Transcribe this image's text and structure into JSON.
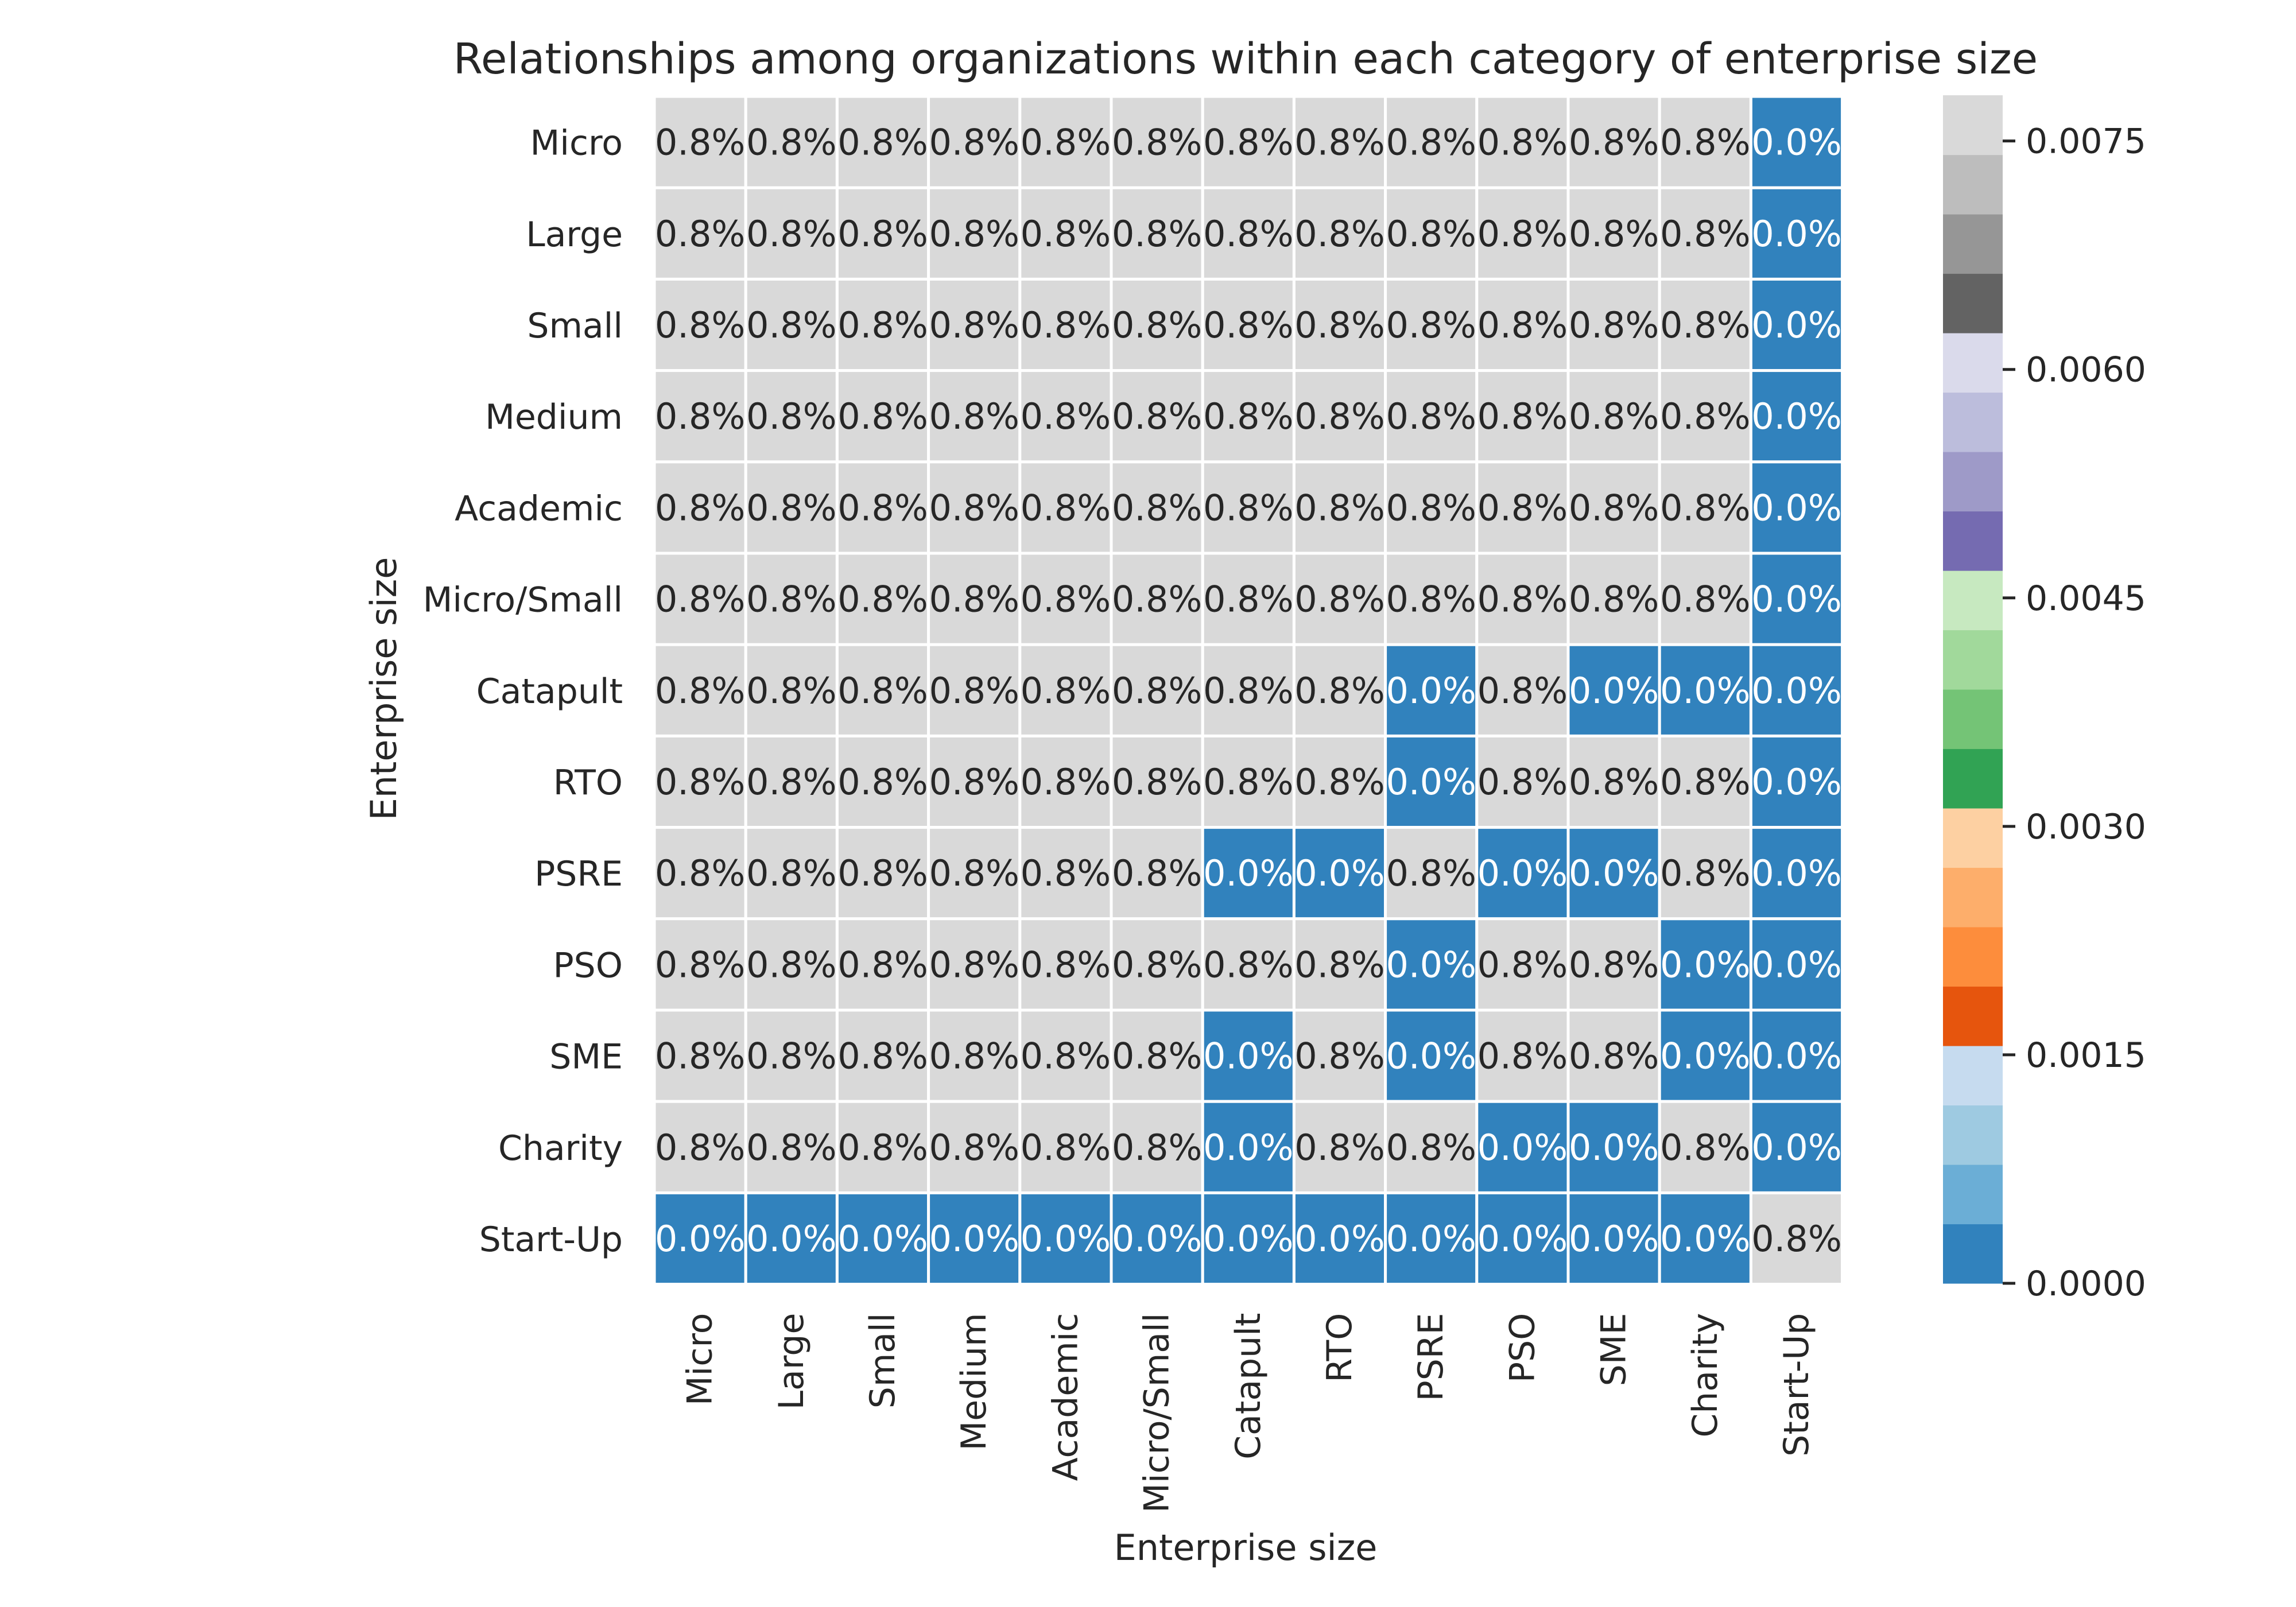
{
  "chart_data": {
    "type": "heatmap",
    "title": "Relationships among organizations within each category of enterprise size",
    "xlabel": "Enterprise size",
    "ylabel": "Enterprise size",
    "rows": [
      "Micro",
      "Large",
      "Small",
      "Medium",
      "Academic",
      "Micro/Small",
      "Catapult",
      "RTO",
      "PSRE",
      "PSO",
      "SME",
      "Charity",
      "Start-Up"
    ],
    "columns": [
      "Micro",
      "Large",
      "Small",
      "Medium",
      "Academic",
      "Micro/Small",
      "Catapult",
      "RTO",
      "PSRE",
      "PSO",
      "SME",
      "Charity",
      "Start-Up"
    ],
    "values": [
      [
        0.0077,
        0.0077,
        0.0077,
        0.0077,
        0.0077,
        0.0077,
        0.0077,
        0.0077,
        0.0077,
        0.0077,
        0.0077,
        0.0077,
        0
      ],
      [
        0.0077,
        0.0077,
        0.0077,
        0.0077,
        0.0077,
        0.0077,
        0.0077,
        0.0077,
        0.0077,
        0.0077,
        0.0077,
        0.0077,
        0
      ],
      [
        0.0077,
        0.0077,
        0.0077,
        0.0077,
        0.0077,
        0.0077,
        0.0077,
        0.0077,
        0.0077,
        0.0077,
        0.0077,
        0.0077,
        0
      ],
      [
        0.0077,
        0.0077,
        0.0077,
        0.0077,
        0.0077,
        0.0077,
        0.0077,
        0.0077,
        0.0077,
        0.0077,
        0.0077,
        0.0077,
        0
      ],
      [
        0.0077,
        0.0077,
        0.0077,
        0.0077,
        0.0077,
        0.0077,
        0.0077,
        0.0077,
        0.0077,
        0.0077,
        0.0077,
        0.0077,
        0
      ],
      [
        0.0077,
        0.0077,
        0.0077,
        0.0077,
        0.0077,
        0.0077,
        0.0077,
        0.0077,
        0.0077,
        0.0077,
        0.0077,
        0.0077,
        0
      ],
      [
        0.0077,
        0.0077,
        0.0077,
        0.0077,
        0.0077,
        0.0077,
        0.0077,
        0.0077,
        0,
        0.0077,
        0,
        0,
        0
      ],
      [
        0.0077,
        0.0077,
        0.0077,
        0.0077,
        0.0077,
        0.0077,
        0.0077,
        0.0077,
        0,
        0.0077,
        0.0077,
        0.0077,
        0
      ],
      [
        0.0077,
        0.0077,
        0.0077,
        0.0077,
        0.0077,
        0.0077,
        0,
        0,
        0.0077,
        0,
        0,
        0.0077,
        0
      ],
      [
        0.0077,
        0.0077,
        0.0077,
        0.0077,
        0.0077,
        0.0077,
        0.0077,
        0.0077,
        0,
        0.0077,
        0.0077,
        0,
        0
      ],
      [
        0.0077,
        0.0077,
        0.0077,
        0.0077,
        0.0077,
        0.0077,
        0,
        0.0077,
        0,
        0.0077,
        0.0077,
        0,
        0
      ],
      [
        0.0077,
        0.0077,
        0.0077,
        0.0077,
        0.0077,
        0.0077,
        0,
        0.0077,
        0.0077,
        0,
        0,
        0.0077,
        0
      ],
      [
        0,
        0,
        0,
        0,
        0,
        0,
        0,
        0,
        0,
        0,
        0,
        0,
        0.0077
      ]
    ],
    "cell_labels": [
      [
        "0.8%",
        "0.8%",
        "0.8%",
        "0.8%",
        "0.8%",
        "0.8%",
        "0.8%",
        "0.8%",
        "0.8%",
        "0.8%",
        "0.8%",
        "0.8%",
        "0.0%"
      ],
      [
        "0.8%",
        "0.8%",
        "0.8%",
        "0.8%",
        "0.8%",
        "0.8%",
        "0.8%",
        "0.8%",
        "0.8%",
        "0.8%",
        "0.8%",
        "0.8%",
        "0.0%"
      ],
      [
        "0.8%",
        "0.8%",
        "0.8%",
        "0.8%",
        "0.8%",
        "0.8%",
        "0.8%",
        "0.8%",
        "0.8%",
        "0.8%",
        "0.8%",
        "0.8%",
        "0.0%"
      ],
      [
        "0.8%",
        "0.8%",
        "0.8%",
        "0.8%",
        "0.8%",
        "0.8%",
        "0.8%",
        "0.8%",
        "0.8%",
        "0.8%",
        "0.8%",
        "0.8%",
        "0.0%"
      ],
      [
        "0.8%",
        "0.8%",
        "0.8%",
        "0.8%",
        "0.8%",
        "0.8%",
        "0.8%",
        "0.8%",
        "0.8%",
        "0.8%",
        "0.8%",
        "0.8%",
        "0.0%"
      ],
      [
        "0.8%",
        "0.8%",
        "0.8%",
        "0.8%",
        "0.8%",
        "0.8%",
        "0.8%",
        "0.8%",
        "0.8%",
        "0.8%",
        "0.8%",
        "0.8%",
        "0.0%"
      ],
      [
        "0.8%",
        "0.8%",
        "0.8%",
        "0.8%",
        "0.8%",
        "0.8%",
        "0.8%",
        "0.8%",
        "0.0%",
        "0.8%",
        "0.0%",
        "0.0%",
        "0.0%"
      ],
      [
        "0.8%",
        "0.8%",
        "0.8%",
        "0.8%",
        "0.8%",
        "0.8%",
        "0.8%",
        "0.8%",
        "0.0%",
        "0.8%",
        "0.8%",
        "0.8%",
        "0.0%"
      ],
      [
        "0.8%",
        "0.8%",
        "0.8%",
        "0.8%",
        "0.8%",
        "0.8%",
        "0.0%",
        "0.0%",
        "0.8%",
        "0.0%",
        "0.0%",
        "0.8%",
        "0.0%"
      ],
      [
        "0.8%",
        "0.8%",
        "0.8%",
        "0.8%",
        "0.8%",
        "0.8%",
        "0.8%",
        "0.8%",
        "0.0%",
        "0.8%",
        "0.8%",
        "0.0%",
        "0.0%"
      ],
      [
        "0.8%",
        "0.8%",
        "0.8%",
        "0.8%",
        "0.8%",
        "0.8%",
        "0.0%",
        "0.8%",
        "0.0%",
        "0.8%",
        "0.8%",
        "0.0%",
        "0.0%"
      ],
      [
        "0.8%",
        "0.8%",
        "0.8%",
        "0.8%",
        "0.8%",
        "0.8%",
        "0.0%",
        "0.8%",
        "0.8%",
        "0.0%",
        "0.0%",
        "0.8%",
        "0.0%"
      ],
      [
        "0.0%",
        "0.0%",
        "0.0%",
        "0.0%",
        "0.0%",
        "0.0%",
        "0.0%",
        "0.0%",
        "0.0%",
        "0.0%",
        "0.0%",
        "0.0%",
        "0.8%"
      ]
    ],
    "colorbar": {
      "range": [
        0,
        0.0078
      ],
      "ticks": [
        0.0,
        0.0015,
        0.003,
        0.0045,
        0.006,
        0.0075
      ],
      "tick_labels": [
        "0.0000",
        "0.0015",
        "0.0030",
        "0.0045",
        "0.0060",
        "0.0075"
      ],
      "colormap": "tab20c",
      "colors": [
        "#3182bd",
        "#6baed6",
        "#9ecae1",
        "#c6dbef",
        "#e6550d",
        "#fd8d3c",
        "#fdae6b",
        "#fdd0a2",
        "#31a354",
        "#74c476",
        "#a1d99b",
        "#c7e9c0",
        "#756bb1",
        "#9e9ac8",
        "#bcbddc",
        "#dadaeb",
        "#636363",
        "#969696",
        "#bdbdbd",
        "#d9d9d9"
      ]
    },
    "grid": false,
    "legend": "colorbar-right"
  }
}
